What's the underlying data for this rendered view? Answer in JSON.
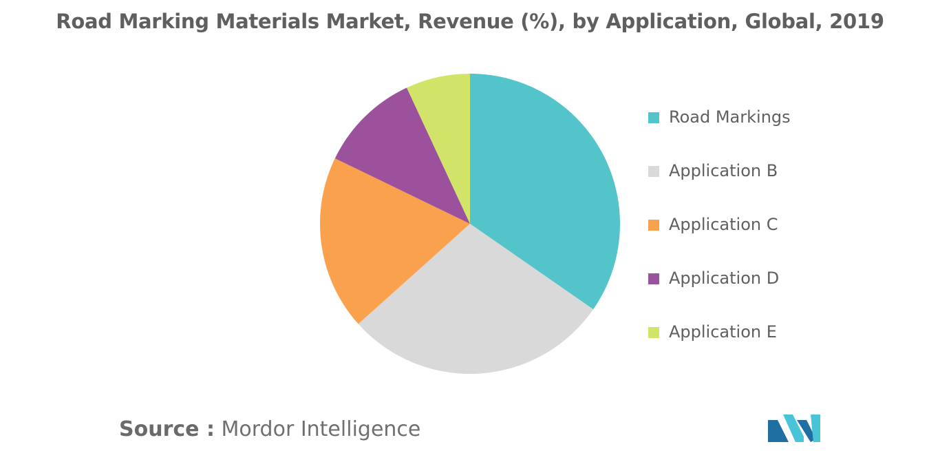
{
  "chart_data": {
    "type": "pie",
    "title": "Road Marking Materials Market, Revenue (%), by Application, Global, 2019",
    "categories": [
      "Road Markings",
      "Application B",
      "Application C",
      "Application D",
      "Application E"
    ],
    "values": [
      35,
      29,
      19,
      11,
      7
    ],
    "colors": [
      "#52c4ca",
      "#d9d9d9",
      "#f9a14c",
      "#9b519c",
      "#d2e36a"
    ],
    "start_angle_deg": 0,
    "direction": "clockwise",
    "legend_placement": "right"
  },
  "source": {
    "label": "Source :",
    "text": "Mordor Intelligence"
  },
  "logo": {
    "icon": "mordor-intelligence-logo-icon",
    "colors": [
      "#1f6fa3",
      "#49c3d8"
    ]
  }
}
